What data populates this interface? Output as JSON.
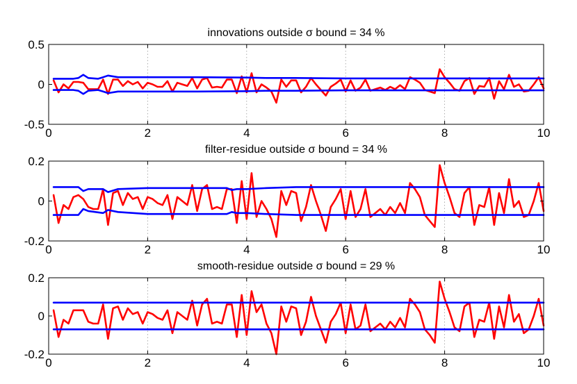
{
  "chart_data": [
    {
      "type": "line",
      "title": "innovations outside σ bound = 34 %",
      "xlim": [
        0,
        10
      ],
      "ylim": [
        -0.5,
        0.5
      ],
      "xticks": [
        0,
        2,
        4,
        6,
        8,
        10
      ],
      "yticks": [
        -0.5,
        0,
        0.5
      ],
      "ytick_labels": [
        "-0.5",
        "0",
        "0.5"
      ],
      "grid": "x-dotted",
      "colors": {
        "series": "#ff0000",
        "bound": "#0000ff"
      },
      "series": [
        {
          "role": "data",
          "x": [
            0.1,
            0.2,
            0.3,
            0.4,
            0.5,
            0.6,
            0.7,
            0.8,
            0.9,
            1.0,
            1.1,
            1.2,
            1.3,
            1.4,
            1.5,
            1.6,
            1.7,
            1.8,
            1.9,
            2.0,
            2.1,
            2.2,
            2.3,
            2.4,
            2.5,
            2.6,
            2.7,
            2.8,
            2.9,
            3.0,
            3.1,
            3.2,
            3.3,
            3.4,
            3.5,
            3.6,
            3.7,
            3.8,
            3.9,
            4.0,
            4.1,
            4.2,
            4.3,
            4.4,
            4.5,
            4.6,
            4.7,
            4.8,
            4.9,
            5.0,
            5.1,
            5.2,
            5.3,
            5.4,
            5.5,
            5.6,
            5.7,
            5.8,
            5.9,
            6.0,
            6.1,
            6.2,
            6.3,
            6.4,
            6.5,
            6.6,
            6.7,
            6.8,
            6.9,
            7.0,
            7.1,
            7.2,
            7.3,
            7.4,
            7.5,
            7.6,
            7.7,
            7.8,
            7.9,
            8.0,
            8.1,
            8.2,
            8.3,
            8.4,
            8.5,
            8.6,
            8.7,
            8.8,
            8.9,
            9.0,
            9.1,
            9.2,
            9.3,
            9.4,
            9.5,
            9.6,
            9.7,
            9.8,
            9.9,
            10.0
          ],
          "y": [
            0.05,
            -0.1,
            0.0,
            -0.05,
            0.03,
            0.03,
            0.02,
            -0.06,
            -0.06,
            -0.06,
            0.06,
            -0.12,
            0.06,
            0.06,
            -0.02,
            0.04,
            0.0,
            0.03,
            -0.05,
            0.02,
            0.0,
            -0.03,
            -0.03,
            0.04,
            -0.09,
            0.02,
            0.0,
            -0.02,
            0.08,
            -0.05,
            0.06,
            0.08,
            -0.04,
            -0.03,
            -0.04,
            0.06,
            0.06,
            -0.11,
            0.1,
            -0.1,
            0.14,
            -0.1,
            0.0,
            -0.04,
            -0.09,
            -0.23,
            0.06,
            -0.03,
            0.05,
            0.05,
            -0.1,
            -0.03,
            0.08,
            0.0,
            -0.07,
            -0.14,
            -0.03,
            0.01,
            0.06,
            -0.09,
            0.05,
            -0.08,
            -0.04,
            0.06,
            -0.08,
            -0.06,
            -0.04,
            -0.07,
            -0.03,
            -0.06,
            -0.01,
            -0.06,
            0.09,
            0.06,
            0.02,
            -0.07,
            -0.09,
            -0.11,
            0.19,
            0.09,
            0.02,
            -0.06,
            -0.08,
            0.04,
            0.08,
            -0.12,
            -0.02,
            -0.03,
            0.08,
            -0.18,
            0.04,
            -0.06,
            0.12,
            -0.03,
            0.0,
            -0.09,
            -0.08,
            0.0,
            0.09,
            -0.05
          ]
        },
        {
          "role": "upper_bound",
          "x": [
            0.1,
            0.5,
            0.6,
            0.7,
            0.8,
            1.0,
            1.1,
            1.2,
            1.4,
            2.0,
            3.0,
            4.0,
            4.4,
            5.0,
            6.0,
            7.0,
            8.0,
            9.0,
            10.0
          ],
          "y": [
            0.07,
            0.07,
            0.08,
            0.12,
            0.08,
            0.07,
            0.09,
            0.11,
            0.09,
            0.09,
            0.09,
            0.085,
            0.08,
            0.08,
            0.075,
            0.075,
            0.075,
            0.075,
            0.075
          ]
        },
        {
          "role": "lower_bound",
          "x": [
            0.1,
            0.5,
            0.6,
            0.7,
            0.8,
            1.0,
            1.1,
            1.2,
            1.4,
            2.0,
            3.0,
            4.0,
            4.4,
            5.0,
            6.0,
            7.0,
            8.0,
            9.0,
            10.0
          ],
          "y": [
            -0.07,
            -0.07,
            -0.08,
            -0.12,
            -0.08,
            -0.07,
            -0.09,
            -0.11,
            -0.09,
            -0.09,
            -0.09,
            -0.085,
            -0.08,
            -0.08,
            -0.075,
            -0.075,
            -0.075,
            -0.075,
            -0.075
          ]
        }
      ]
    },
    {
      "type": "line",
      "title": "filter-residue outside σ bound = 34 %",
      "xlim": [
        0,
        10
      ],
      "ylim": [
        -0.2,
        0.2
      ],
      "xticks": [
        0,
        2,
        4,
        6,
        8,
        10
      ],
      "yticks": [
        -0.2,
        0,
        0.2
      ],
      "ytick_labels": [
        "-0.2",
        "0",
        "0.2"
      ],
      "grid": "x-dotted",
      "colors": {
        "series": "#ff0000",
        "bound": "#0000ff"
      },
      "series": [
        {
          "role": "data",
          "x": [
            0.1,
            0.2,
            0.3,
            0.4,
            0.5,
            0.6,
            0.7,
            0.8,
            0.9,
            1.0,
            1.1,
            1.2,
            1.3,
            1.4,
            1.5,
            1.6,
            1.7,
            1.8,
            1.9,
            2.0,
            2.1,
            2.2,
            2.3,
            2.4,
            2.5,
            2.6,
            2.7,
            2.8,
            2.9,
            3.0,
            3.1,
            3.2,
            3.3,
            3.4,
            3.5,
            3.6,
            3.7,
            3.8,
            3.9,
            4.0,
            4.1,
            4.2,
            4.3,
            4.4,
            4.5,
            4.6,
            4.7,
            4.8,
            4.9,
            5.0,
            5.1,
            5.2,
            5.3,
            5.4,
            5.5,
            5.6,
            5.7,
            5.8,
            5.9,
            6.0,
            6.1,
            6.2,
            6.3,
            6.4,
            6.5,
            6.6,
            6.7,
            6.8,
            6.9,
            7.0,
            7.1,
            7.2,
            7.3,
            7.4,
            7.5,
            7.6,
            7.7,
            7.8,
            7.9,
            8.0,
            8.1,
            8.2,
            8.3,
            8.4,
            8.5,
            8.6,
            8.7,
            8.8,
            8.9,
            9.0,
            9.1,
            9.2,
            9.3,
            9.4,
            9.5,
            9.6,
            9.7,
            9.8,
            9.9,
            10.0
          ],
          "y": [
            0.03,
            -0.11,
            -0.02,
            -0.04,
            0.02,
            0.03,
            0.01,
            -0.03,
            -0.04,
            -0.04,
            0.06,
            -0.12,
            0.04,
            0.05,
            -0.02,
            0.04,
            0.01,
            0.02,
            -0.04,
            0.02,
            0.01,
            -0.01,
            -0.02,
            0.03,
            -0.09,
            0.02,
            0.0,
            -0.02,
            0.08,
            -0.05,
            0.06,
            0.08,
            -0.04,
            -0.03,
            -0.04,
            0.06,
            0.06,
            -0.11,
            0.1,
            -0.09,
            0.14,
            -0.08,
            0.0,
            -0.04,
            -0.09,
            -0.18,
            0.05,
            -0.02,
            0.05,
            0.04,
            -0.1,
            -0.03,
            0.08,
            0.0,
            -0.07,
            -0.15,
            -0.03,
            0.01,
            0.06,
            -0.09,
            0.05,
            -0.08,
            -0.04,
            0.06,
            -0.08,
            -0.06,
            -0.04,
            -0.07,
            -0.03,
            -0.06,
            -0.01,
            -0.06,
            0.09,
            0.06,
            0.02,
            -0.07,
            -0.1,
            -0.13,
            0.18,
            0.09,
            0.02,
            -0.06,
            -0.08,
            0.04,
            0.07,
            -0.12,
            -0.02,
            -0.03,
            0.07,
            -0.12,
            0.04,
            -0.06,
            0.11,
            -0.03,
            0.0,
            -0.08,
            -0.07,
            0.0,
            0.09,
            -0.05
          ]
        },
        {
          "role": "upper_bound",
          "x": [
            0.1,
            0.6,
            0.7,
            0.8,
            1.1,
            1.2,
            1.4,
            2.0,
            3.0,
            3.6,
            3.7,
            3.8,
            4.0,
            4.4,
            5.0,
            6.0,
            7.0,
            8.0,
            9.0,
            10.0
          ],
          "y": [
            0.07,
            0.07,
            0.05,
            0.06,
            0.06,
            0.045,
            0.06,
            0.065,
            0.065,
            0.065,
            0.055,
            0.06,
            0.06,
            0.065,
            0.07,
            0.07,
            0.07,
            0.07,
            0.07,
            0.07
          ]
        },
        {
          "role": "lower_bound",
          "x": [
            0.1,
            0.6,
            0.7,
            0.8,
            1.1,
            1.2,
            1.4,
            2.0,
            3.0,
            3.6,
            3.7,
            3.8,
            4.0,
            4.4,
            5.0,
            6.0,
            7.0,
            8.0,
            9.0,
            10.0
          ],
          "y": [
            -0.07,
            -0.07,
            -0.04,
            -0.05,
            -0.06,
            -0.045,
            -0.055,
            -0.065,
            -0.065,
            -0.065,
            -0.055,
            -0.06,
            -0.06,
            -0.065,
            -0.07,
            -0.07,
            -0.07,
            -0.07,
            -0.07,
            -0.07
          ]
        }
      ]
    },
    {
      "type": "line",
      "title": "smooth-residue outside σ bound = 29 %",
      "xlim": [
        0,
        10
      ],
      "ylim": [
        -0.2,
        0.2
      ],
      "xticks": [
        0,
        2,
        4,
        6,
        8,
        10
      ],
      "yticks": [
        -0.2,
        0,
        0.2
      ],
      "ytick_labels": [
        "-0.2",
        "0",
        "0.2"
      ],
      "grid": "x-dotted",
      "colors": {
        "series": "#ff0000",
        "bound": "#0000ff"
      },
      "series": [
        {
          "role": "data",
          "x": [
            0.1,
            0.2,
            0.3,
            0.4,
            0.5,
            0.6,
            0.7,
            0.8,
            0.9,
            1.0,
            1.1,
            1.2,
            1.3,
            1.4,
            1.5,
            1.6,
            1.7,
            1.8,
            1.9,
            2.0,
            2.1,
            2.2,
            2.3,
            2.4,
            2.5,
            2.6,
            2.7,
            2.8,
            2.9,
            3.0,
            3.1,
            3.2,
            3.3,
            3.4,
            3.5,
            3.6,
            3.7,
            3.8,
            3.9,
            4.0,
            4.1,
            4.2,
            4.3,
            4.4,
            4.5,
            4.6,
            4.7,
            4.8,
            4.9,
            5.0,
            5.1,
            5.2,
            5.3,
            5.4,
            5.5,
            5.6,
            5.7,
            5.8,
            5.9,
            6.0,
            6.1,
            6.2,
            6.3,
            6.4,
            6.5,
            6.6,
            6.7,
            6.8,
            6.9,
            7.0,
            7.1,
            7.2,
            7.3,
            7.4,
            7.5,
            7.6,
            7.7,
            7.8,
            7.9,
            8.0,
            8.1,
            8.2,
            8.3,
            8.4,
            8.5,
            8.6,
            8.7,
            8.8,
            8.9,
            9.0,
            9.1,
            9.2,
            9.3,
            9.4,
            9.5,
            9.6,
            9.7,
            9.8,
            9.9,
            10.0
          ],
          "y": [
            0.03,
            -0.11,
            -0.02,
            -0.04,
            0.03,
            0.03,
            0.03,
            -0.03,
            -0.04,
            -0.04,
            0.06,
            -0.12,
            0.04,
            0.05,
            -0.02,
            0.04,
            0.01,
            0.02,
            -0.04,
            0.02,
            0.01,
            -0.01,
            -0.02,
            0.03,
            -0.09,
            0.02,
            0.0,
            -0.02,
            0.08,
            -0.05,
            0.06,
            0.09,
            -0.04,
            -0.03,
            -0.04,
            0.06,
            0.06,
            -0.11,
            0.11,
            -0.1,
            0.13,
            0.02,
            0.06,
            -0.04,
            -0.09,
            -0.2,
            0.05,
            -0.03,
            0.05,
            0.04,
            -0.1,
            -0.03,
            0.1,
            0.0,
            -0.07,
            -0.14,
            -0.03,
            0.01,
            0.07,
            -0.09,
            0.06,
            -0.07,
            -0.05,
            0.06,
            -0.08,
            -0.06,
            -0.04,
            -0.07,
            -0.03,
            -0.06,
            -0.01,
            -0.06,
            0.09,
            0.06,
            0.02,
            -0.07,
            -0.1,
            -0.14,
            0.18,
            0.09,
            0.02,
            -0.06,
            -0.08,
            0.05,
            0.07,
            -0.11,
            -0.02,
            -0.03,
            0.07,
            -0.12,
            0.05,
            -0.06,
            0.11,
            -0.03,
            0.01,
            -0.09,
            -0.07,
            0.0,
            0.09,
            -0.05
          ]
        },
        {
          "role": "upper_bound",
          "x": [
            0.1,
            1.0,
            2.0,
            3.0,
            4.0,
            5.0,
            6.0,
            7.0,
            8.0,
            9.0,
            10.0
          ],
          "y": [
            0.07,
            0.07,
            0.07,
            0.07,
            0.07,
            0.07,
            0.07,
            0.07,
            0.07,
            0.07,
            0.07
          ]
        },
        {
          "role": "lower_bound",
          "x": [
            0.1,
            1.0,
            2.0,
            3.0,
            4.0,
            5.0,
            6.0,
            7.0,
            8.0,
            9.0,
            10.0
          ],
          "y": [
            -0.07,
            -0.07,
            -0.07,
            -0.07,
            -0.07,
            -0.07,
            -0.07,
            -0.07,
            -0.07,
            -0.07,
            -0.07
          ]
        }
      ]
    }
  ]
}
